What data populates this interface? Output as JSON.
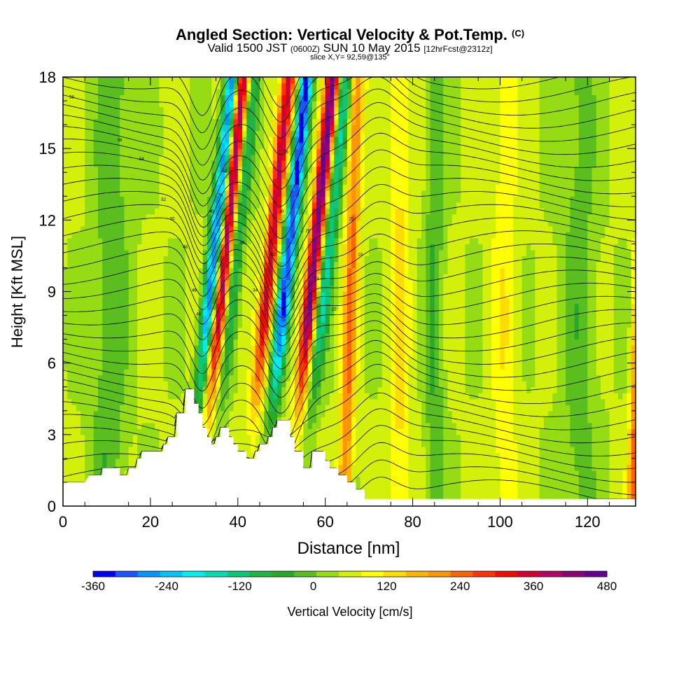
{
  "chart_data": {
    "type": "heatmap",
    "title": "Angled Section: Vertical Velocity & Pot.Temp.",
    "title_suffix": "(C)",
    "subtitle_part1": "Valid 1500 JST",
    "subtitle_part2": "(0600Z)",
    "subtitle_part3": "SUN 10 May 2015",
    "subtitle_part4": "[12hrFcst@2312z]",
    "slice_label": "slice X,Y= 92,59@135°",
    "xlabel": "Distance [nm]",
    "ylabel": "Height [Kft MSL]",
    "xlim": [
      0,
      131
    ],
    "ylim": [
      0,
      18
    ],
    "x_ticks": [
      "0",
      "20",
      "40",
      "60",
      "80",
      "100",
      "120"
    ],
    "y_ticks": [
      "0",
      "3",
      "6",
      "9",
      "12",
      "15",
      "18"
    ],
    "colorbar": {
      "label": "Vertical Velocity [cm/s]",
      "tick_labels": [
        "-360",
        "-240",
        "-120",
        "0",
        "120",
        "240",
        "360",
        "480"
      ],
      "min": -390,
      "max": 480,
      "colors": [
        "#0000ff",
        "#1a55ff",
        "#0096ff",
        "#00c3ff",
        "#00ecf0",
        "#00dcb4",
        "#0ac878",
        "#1eb446",
        "#28aa28",
        "#5abe1e",
        "#96dc14",
        "#d2f00a",
        "#ffff00",
        "#ffdc00",
        "#ffb400",
        "#ff9600",
        "#ff6400",
        "#ff3200",
        "#f00a00",
        "#d20032",
        "#b40064",
        "#8c0078",
        "#640096"
      ]
    },
    "terrain_kft": [
      [
        0,
        1.0
      ],
      [
        5,
        1.0
      ],
      [
        6,
        1.3
      ],
      [
        9,
        1.3
      ],
      [
        9,
        1.6
      ],
      [
        13,
        1.6
      ],
      [
        13,
        1.3
      ],
      [
        15,
        1.3
      ],
      [
        15,
        1.6
      ],
      [
        17,
        1.6
      ],
      [
        17,
        2.0
      ],
      [
        18,
        2.0
      ],
      [
        18,
        2.3
      ],
      [
        23,
        2.3
      ],
      [
        23,
        2.6
      ],
      [
        24,
        2.6
      ],
      [
        24,
        2.9
      ],
      [
        26,
        2.9
      ],
      [
        26,
        3.9
      ],
      [
        28,
        3.9
      ],
      [
        28,
        4.9
      ],
      [
        30,
        4.9
      ],
      [
        30,
        4.3
      ],
      [
        31,
        4.3
      ],
      [
        31,
        3.9
      ],
      [
        32,
        3.9
      ],
      [
        32,
        3.3
      ],
      [
        33,
        3.3
      ],
      [
        33,
        2.9
      ],
      [
        34,
        2.9
      ],
      [
        34,
        2.6
      ],
      [
        35,
        2.6
      ],
      [
        35,
        2.9
      ],
      [
        36,
        2.9
      ],
      [
        36,
        3.3
      ],
      [
        38,
        3.3
      ],
      [
        38,
        2.9
      ],
      [
        39,
        2.9
      ],
      [
        39,
        2.6
      ],
      [
        40,
        2.6
      ],
      [
        40,
        2.3
      ],
      [
        42,
        2.3
      ],
      [
        42,
        2.0
      ],
      [
        44,
        2.0
      ],
      [
        44,
        2.3
      ],
      [
        45,
        2.3
      ],
      [
        45,
        2.6
      ],
      [
        47,
        2.6
      ],
      [
        47,
        2.9
      ],
      [
        48,
        2.9
      ],
      [
        48,
        3.3
      ],
      [
        49,
        3.3
      ],
      [
        49,
        3.6
      ],
      [
        52,
        3.6
      ],
      [
        52,
        2.9
      ],
      [
        53,
        2.9
      ],
      [
        53,
        2.3
      ],
      [
        55,
        2.3
      ],
      [
        55,
        1.6
      ],
      [
        57,
        1.6
      ],
      [
        57,
        2.3
      ],
      [
        60,
        2.3
      ],
      [
        60,
        1.9
      ],
      [
        61,
        1.9
      ],
      [
        61,
        1.6
      ],
      [
        63,
        1.6
      ],
      [
        63,
        1.3
      ],
      [
        65,
        1.3
      ],
      [
        65,
        1.0
      ],
      [
        67,
        1.0
      ],
      [
        67,
        0.7
      ],
      [
        69,
        0.7
      ],
      [
        69,
        0.3
      ],
      [
        131,
        0.3
      ]
    ],
    "vertical_velocity_features_cm_s": [
      {
        "x": 31,
        "v": -360
      },
      {
        "x": 33.5,
        "v": 400
      },
      {
        "x": 36,
        "v": -150
      },
      {
        "x": 44,
        "v": 330
      },
      {
        "x": 48,
        "v": -380
      },
      {
        "x": 54,
        "v": 420
      },
      {
        "x": 57,
        "v": -200
      },
      {
        "x": 65,
        "v": 190
      },
      {
        "x": 131,
        "v": 200
      }
    ],
    "pot_temp_contour_labels_c": [
      "58",
      "56",
      "54",
      "52",
      "50",
      "48",
      "46",
      "44",
      "42",
      "40",
      "38",
      "36",
      "34",
      "32",
      "30",
      "28",
      "26",
      "24",
      "22",
      "20",
      "18"
    ]
  }
}
